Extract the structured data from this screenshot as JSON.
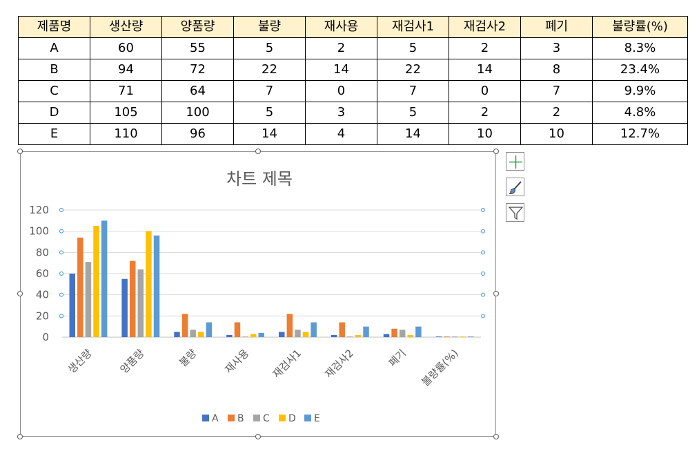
{
  "table": {
    "headers": [
      "제품명",
      "생산량",
      "양품량",
      "불량",
      "재사용",
      "재검사1",
      "재검사2",
      "폐기",
      "불량률(%)"
    ],
    "rows": [
      [
        "A",
        "60",
        "55",
        "5",
        "2",
        "5",
        "2",
        "3",
        "8.3%"
      ],
      [
        "B",
        "94",
        "72",
        "22",
        "14",
        "22",
        "14",
        "8",
        "23.4%"
      ],
      [
        "C",
        "71",
        "64",
        "7",
        "0",
        "7",
        "0",
        "7",
        "9.9%"
      ],
      [
        "D",
        "105",
        "100",
        "5",
        "3",
        "5",
        "2",
        "2",
        "4.8%"
      ],
      [
        "E",
        "110",
        "96",
        "14",
        "4",
        "14",
        "10",
        "10",
        "12.7%"
      ]
    ]
  },
  "chart_data": {
    "type": "bar",
    "title": "차트 제목",
    "categories": [
      "생산량",
      "양품량",
      "불량",
      "재사용",
      "재검사1",
      "재검사2",
      "폐기",
      "불량률(%)"
    ],
    "series": [
      {
        "name": "A",
        "color": "#4472c4",
        "values": [
          60,
          55,
          5,
          2,
          5,
          2,
          3,
          0.083
        ]
      },
      {
        "name": "B",
        "color": "#ed7d31",
        "values": [
          94,
          72,
          22,
          14,
          22,
          14,
          8,
          0.234
        ]
      },
      {
        "name": "C",
        "color": "#a5a5a5",
        "values": [
          71,
          64,
          7,
          0,
          7,
          0,
          7,
          0.099
        ]
      },
      {
        "name": "D",
        "color": "#ffc000",
        "values": [
          105,
          100,
          5,
          3,
          5,
          2,
          2,
          0.048
        ]
      },
      {
        "name": "E",
        "color": "#5b9bd5",
        "values": [
          110,
          96,
          14,
          4,
          14,
          10,
          10,
          0.127
        ]
      }
    ],
    "yticks": [
      "0",
      "20",
      "40",
      "60",
      "80",
      "100",
      "120"
    ],
    "ylim": [
      0,
      120
    ],
    "grid": true,
    "legend": "bottom"
  },
  "side_buttons": {
    "add_icon": "plus-icon",
    "style_icon": "paintbrush-icon",
    "filter_icon": "filter-icon"
  }
}
